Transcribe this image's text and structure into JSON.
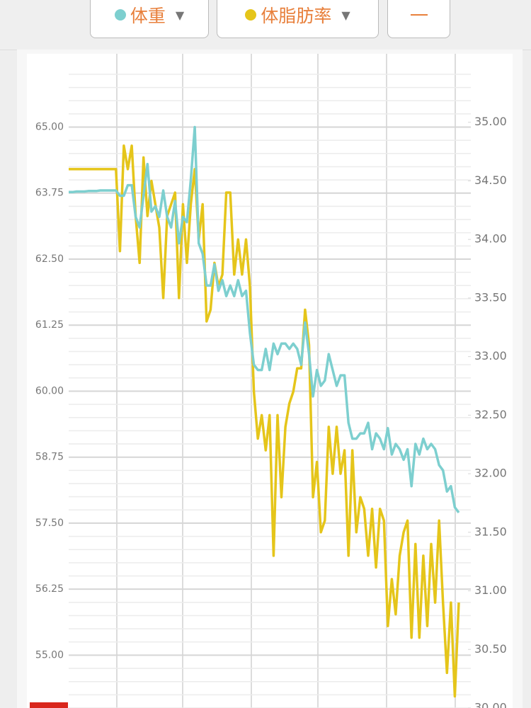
{
  "chart_data": {
    "type": "line",
    "series": [
      {
        "name": "体重",
        "color": "#7dcfcf",
        "values": [
          63.77,
          63.77,
          63.78,
          63.78,
          63.78,
          63.79,
          63.79,
          63.79,
          63.8,
          63.8,
          63.8,
          63.8,
          63.8,
          63.7,
          63.7,
          63.9,
          63.9,
          63.3,
          63.1,
          63.7,
          64.3,
          63.4,
          63.5,
          63.3,
          63.8,
          63.3,
          63.1,
          63.6,
          62.8,
          63.3,
          63.2,
          64.0,
          65.0,
          62.8,
          62.6,
          62.0,
          62.0,
          62.4,
          61.9,
          62.1,
          61.8,
          62.0,
          61.8,
          62.1,
          61.8,
          61.9,
          61.1,
          60.5,
          60.4,
          60.4,
          60.8,
          60.4,
          60.9,
          60.7,
          60.9,
          60.9,
          60.8,
          60.9,
          60.8,
          60.5,
          61.3,
          60.7,
          59.9,
          60.4,
          60.1,
          60.2,
          60.7,
          60.4,
          60.1,
          60.3,
          60.3,
          59.4,
          59.1,
          59.1,
          59.2,
          59.2,
          59.4,
          58.9,
          59.2,
          59.1,
          58.9,
          59.3,
          58.8,
          59.0,
          58.9,
          58.7,
          58.9,
          58.2,
          59.0,
          58.8,
          59.1,
          58.9,
          59.0,
          58.9,
          58.6,
          58.5,
          58.1,
          58.2,
          57.8,
          57.7
        ]
      },
      {
        "name": "体脂肪率",
        "color": "#e5c51a",
        "axis": "y2",
        "values": [
          34.6,
          34.6,
          34.6,
          34.6,
          34.6,
          34.6,
          34.6,
          34.6,
          34.6,
          34.6,
          34.6,
          34.6,
          34.6,
          33.9,
          34.8,
          34.6,
          34.8,
          34.2,
          33.8,
          34.7,
          34.2,
          34.5,
          34.3,
          34.1,
          33.5,
          34.2,
          34.3,
          34.4,
          33.5,
          34.3,
          33.8,
          34.3,
          34.6,
          34.0,
          34.3,
          33.3,
          33.4,
          33.8,
          33.6,
          33.7,
          34.4,
          34.4,
          33.7,
          34.0,
          33.7,
          34.0,
          33.6,
          32.7,
          32.3,
          32.5,
          32.2,
          32.5,
          31.3,
          32.5,
          31.8,
          32.4,
          32.6,
          32.7,
          32.9,
          32.9,
          33.4,
          33.1,
          31.8,
          32.1,
          31.5,
          31.6,
          32.4,
          32.0,
          32.4,
          32.0,
          32.2,
          31.3,
          32.2,
          31.5,
          31.8,
          31.7,
          31.3,
          31.7,
          31.2,
          31.7,
          31.6,
          30.7,
          31.1,
          30.8,
          31.3,
          31.5,
          31.6,
          30.6,
          31.4,
          30.6,
          31.3,
          30.7,
          31.4,
          30.9,
          31.6,
          30.9,
          30.3,
          30.9,
          30.1,
          30.9
        ]
      }
    ],
    "ylim": [
      54.0,
      66.2
    ],
    "yticks": [
      {
        "value": 55,
        "label": "55.00"
      },
      {
        "value": 56.25,
        "label": "56.25"
      },
      {
        "value": 57.5,
        "label": "57.50"
      },
      {
        "value": 58.75,
        "label": "58.75"
      },
      {
        "value": 60,
        "label": "60.00"
      },
      {
        "value": 61.25,
        "label": "61.25"
      },
      {
        "value": 62.5,
        "label": "62.50"
      },
      {
        "value": 63.75,
        "label": "63.75"
      },
      {
        "value": 65,
        "label": "65.00"
      }
    ],
    "y2lim": [
      30,
      35.5
    ],
    "y2ticks": [
      {
        "value": 30,
        "label": "30.00"
      },
      {
        "value": 30.5,
        "label": "30.50"
      },
      {
        "value": 31,
        "label": "31.00"
      },
      {
        "value": 31.5,
        "label": "31.50"
      },
      {
        "value": 32,
        "label": "32.00"
      },
      {
        "value": 32.5,
        "label": "32.50"
      },
      {
        "value": 33,
        "label": "33.00"
      },
      {
        "value": 33.5,
        "label": "33.50"
      },
      {
        "value": 34,
        "label": "34.00"
      },
      {
        "value": 34.5,
        "label": "34.50"
      },
      {
        "value": 35,
        "label": "35.00"
      }
    ],
    "grid": true
  }
}
